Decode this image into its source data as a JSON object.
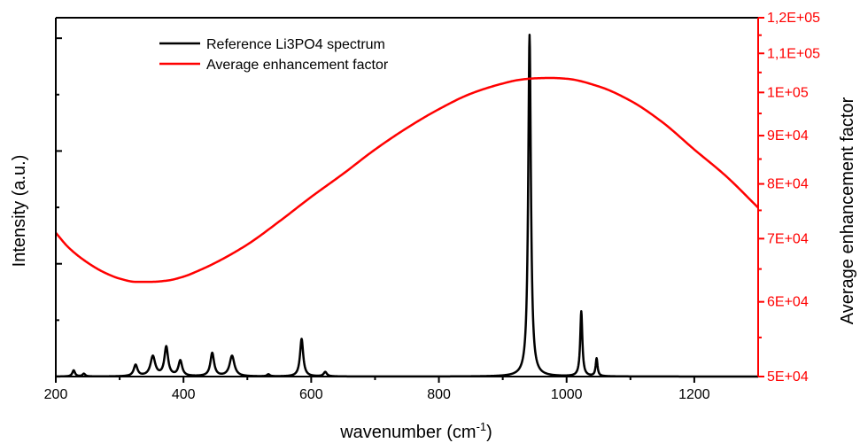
{
  "chart_data": {
    "type": "line",
    "title": "",
    "xlabel_main": "wavenumber (cm",
    "xlabel_sup": "-1",
    "xlabel_close": ")",
    "ylabel_left": "Intensity (a.u.)",
    "ylabel_right": "Average enhancement factor",
    "xlim": [
      200,
      1300
    ],
    "x_ticks": [
      200,
      400,
      600,
      800,
      1000,
      1200
    ],
    "x_tick_labels": [
      "200",
      "400",
      "600",
      "800",
      "1000",
      "1200"
    ],
    "ylim_right": [
      50000,
      120000
    ],
    "y_right_scale": "log",
    "y_right_ticks": [
      50000,
      60000,
      70000,
      80000,
      90000,
      100000,
      110000,
      120000
    ],
    "y_right_tick_labels": [
      "5E+04",
      "6E+04",
      "7E+04",
      "8E+04",
      "9E+04",
      "1E+05",
      "1,1E+05",
      "1,2E+05"
    ],
    "ylim_left": [
      0,
      1.05
    ],
    "legend_position": "top-left",
    "series": [
      {
        "name": "Reference Li3PO4 spectrum",
        "axis": "left",
        "color": "#000000",
        "peaks": [
          {
            "x": 228,
            "height": 0.018,
            "width": 5
          },
          {
            "x": 244,
            "height": 0.008,
            "width": 5
          },
          {
            "x": 325,
            "height": 0.033,
            "width": 7
          },
          {
            "x": 352,
            "height": 0.058,
            "width": 9
          },
          {
            "x": 373,
            "height": 0.085,
            "width": 7
          },
          {
            "x": 395,
            "height": 0.045,
            "width": 7
          },
          {
            "x": 445,
            "height": 0.068,
            "width": 7
          },
          {
            "x": 476,
            "height": 0.06,
            "width": 9
          },
          {
            "x": 533,
            "height": 0.006,
            "width": 5
          },
          {
            "x": 585,
            "height": 0.11,
            "width": 6
          },
          {
            "x": 622,
            "height": 0.013,
            "width": 6
          },
          {
            "x": 942,
            "height": 1.0,
            "width": 5
          },
          {
            "x": 1023,
            "height": 0.19,
            "width": 4
          },
          {
            "x": 1047,
            "height": 0.052,
            "width": 3.5
          }
        ]
      },
      {
        "name": "Average enhancement factor",
        "axis": "right",
        "color": "#ff0000",
        "x": [
          200,
          220,
          250,
          275,
          300,
          325,
          350,
          375,
          400,
          425,
          450,
          500,
          550,
          600,
          650,
          700,
          750,
          800,
          850,
          900,
          925,
          950,
          975,
          1000,
          1050,
          1100,
          1150,
          1200,
          1250,
          1300
        ],
        "y": [
          71000,
          68500,
          66000,
          64500,
          63500,
          63000,
          63000,
          63200,
          63800,
          64800,
          66000,
          69000,
          73000,
          77500,
          82000,
          87000,
          91700,
          96000,
          99700,
          102200,
          103100,
          103500,
          103600,
          103400,
          101500,
          98000,
          93000,
          87000,
          81500,
          75500
        ]
      }
    ]
  }
}
